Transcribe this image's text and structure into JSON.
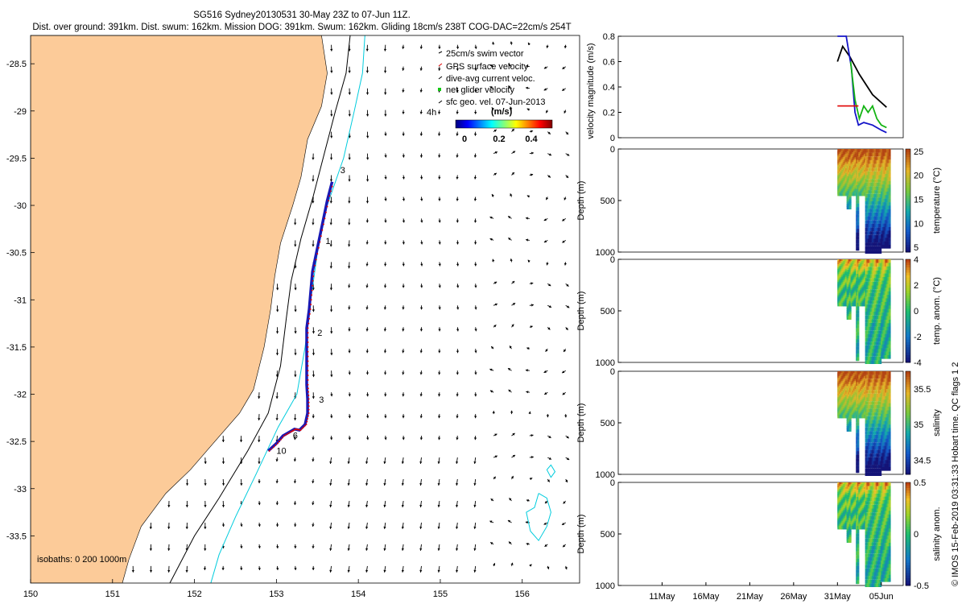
{
  "header": {
    "line1": "SG516 Sydney20130531 30-May 23Z to 07-Jun 11Z.",
    "line2": "Dist. over ground: 391km. Dist. swum: 162km. Mission DOG: 391km. Swum: 162km. Gliding 18cm/s 238T COG-DAC=22cm/s 254T"
  },
  "credit": "© IMOS 15-Feb-2019 03:31:33 Hobart time. QC flags 1  2",
  "colors": {
    "land": "#FCCB99",
    "isobath_200": "#000000",
    "isobath_1000": "#00CCDD",
    "track": "#1919B4",
    "gps": "#E00000",
    "dac": "#000000"
  },
  "chart_data": [
    {
      "type": "map",
      "name": "glider track map",
      "xlim": [
        150,
        156.7
      ],
      "ylim": [
        -34,
        -28.2
      ],
      "x_ticks": [
        150,
        151,
        152,
        153,
        154,
        155,
        156
      ],
      "y_ticks": [
        -28.5,
        -29,
        -29.5,
        -30,
        -30.5,
        -31,
        -31.5,
        -32,
        -32.5,
        -33,
        -33.5
      ],
      "x_tick_labels": [
        "150",
        "151",
        "152",
        "153",
        "154",
        "155",
        "156"
      ],
      "y_tick_labels": [
        "-28.5",
        "-29",
        "-29.5",
        "-30",
        "-30.5",
        "-31",
        "-31.5",
        "-32",
        "-32.5",
        "-33",
        "-33.5"
      ],
      "isobath_note": "isobaths: 0   200  1000m",
      "legend": [
        "25cm/s swim vector",
        "GPS surface velocity",
        "dive-avg current veloc.",
        "net glider velocity",
        "sfc geo. vel. 07-Jun-2013"
      ],
      "colorbar": {
        "label": "(m/s)",
        "ticks": [
          "0",
          "0.2",
          "0.4"
        ],
        "range": [
          0,
          0.5
        ]
      },
      "scale_label": "4h",
      "track": [
        [
          152.9,
          -32.6
        ],
        [
          153.0,
          -32.52
        ],
        [
          153.08,
          -32.44
        ],
        [
          153.16,
          -32.4
        ],
        [
          153.22,
          -32.37
        ],
        [
          153.28,
          -32.38
        ],
        [
          153.35,
          -32.32
        ],
        [
          153.38,
          -32.2
        ],
        [
          153.38,
          -32.05
        ],
        [
          153.37,
          -31.9
        ],
        [
          153.37,
          -31.7
        ],
        [
          153.37,
          -31.5
        ],
        [
          153.37,
          -31.3
        ],
        [
          153.4,
          -31.1
        ],
        [
          153.42,
          -30.9
        ],
        [
          153.44,
          -30.7
        ],
        [
          153.5,
          -30.45
        ],
        [
          153.56,
          -30.2
        ],
        [
          153.62,
          -29.95
        ],
        [
          153.68,
          -29.75
        ]
      ],
      "day_markers": [
        {
          "label": "3",
          "lon": 153.78,
          "lat": -29.66
        },
        {
          "label": "1",
          "lon": 153.6,
          "lat": -30.41
        },
        {
          "label": "2",
          "lon": 153.5,
          "lat": -31.38
        },
        {
          "label": "3",
          "lon": 153.52,
          "lat": -32.09
        },
        {
          "label": "6",
          "lon": 153.2,
          "lat": -32.47
        },
        {
          "label": "10",
          "lon": 153.0,
          "lat": -32.63
        }
      ]
    },
    {
      "type": "line",
      "name": "velocity magnitude",
      "ylabel": "velocity magnitude (m/s)",
      "ylim": [
        0,
        0.8
      ],
      "y_ticks": [
        "0",
        "0.2",
        "0.4",
        "0.6",
        "0.8"
      ],
      "x_range": "31-May to 07-Jun",
      "series": [
        {
          "name": "sfc geo. vel.",
          "color": "#000000",
          "points": [
            [
              31.0,
              0.6
            ],
            [
              31.6,
              0.72
            ],
            [
              32.4,
              0.64
            ],
            [
              33.5,
              0.5
            ],
            [
              35.0,
              0.34
            ],
            [
              36.6,
              0.24
            ]
          ]
        },
        {
          "name": "dive-avg current",
          "color": "#1414C8",
          "points": [
            [
              31.0,
              0.8
            ],
            [
              32.0,
              0.8
            ],
            [
              32.6,
              0.55
            ],
            [
              33.0,
              0.2
            ],
            [
              33.4,
              0.1
            ],
            [
              34.0,
              0.12
            ],
            [
              35.0,
              0.1
            ],
            [
              36.0,
              0.06
            ],
            [
              36.6,
              0.04
            ]
          ]
        },
        {
          "name": "net glider velocity",
          "color": "#14B414",
          "points": [
            [
              32.5,
              0.6
            ],
            [
              33.0,
              0.3
            ],
            [
              33.5,
              0.15
            ],
            [
              34.0,
              0.25
            ],
            [
              34.5,
              0.2
            ],
            [
              35.0,
              0.25
            ],
            [
              35.5,
              0.15
            ],
            [
              36.0,
              0.1
            ],
            [
              36.6,
              0.08
            ]
          ]
        },
        {
          "name": "swim speed",
          "color": "#E00000",
          "points": [
            [
              31.0,
              0.25
            ],
            [
              33.4,
              0.25
            ]
          ]
        }
      ]
    },
    {
      "type": "heatmap",
      "name": "temperature section",
      "ylabel": "Depth (m)",
      "ylim": [
        0,
        1000
      ],
      "y_ticks": [
        "0",
        "500",
        "1000"
      ],
      "colorbar_label": "temperature (°C)",
      "colorbar_ticks": [
        "5",
        "10",
        "15",
        "20",
        "25"
      ],
      "clim": [
        4,
        25.5
      ],
      "surface_value": 24,
      "deep_value": 5
    },
    {
      "type": "heatmap",
      "name": "temperature anomaly section",
      "ylabel": "Depth (m)",
      "ylim": [
        0,
        1000
      ],
      "y_ticks": [
        "0",
        "500",
        "1000"
      ],
      "colorbar_label": "temp. anom. (°C)",
      "colorbar_ticks": [
        "-4",
        "-2",
        "0",
        "2",
        "4"
      ],
      "clim": [
        -4,
        4
      ]
    },
    {
      "type": "heatmap",
      "name": "salinity section",
      "ylabel": "Depth (m)",
      "ylim": [
        0,
        1000
      ],
      "y_ticks": [
        "0",
        "500",
        "1000"
      ],
      "colorbar_label": "salinity",
      "colorbar_ticks": [
        "34.5",
        "35",
        "35.5"
      ],
      "clim": [
        34.3,
        35.75
      ]
    },
    {
      "type": "heatmap",
      "name": "salinity anomaly section",
      "ylabel": "Depth (m)",
      "ylim": [
        0,
        1000
      ],
      "y_ticks": [
        "0",
        "500",
        "1000"
      ],
      "colorbar_label": "salinity anom.",
      "colorbar_ticks": [
        "-0.5",
        "0",
        "0.5"
      ],
      "clim": [
        -0.5,
        0.5
      ],
      "time_ticks": [
        "11May",
        "16May",
        "21May",
        "26May",
        "31May",
        "05Jun"
      ]
    }
  ]
}
